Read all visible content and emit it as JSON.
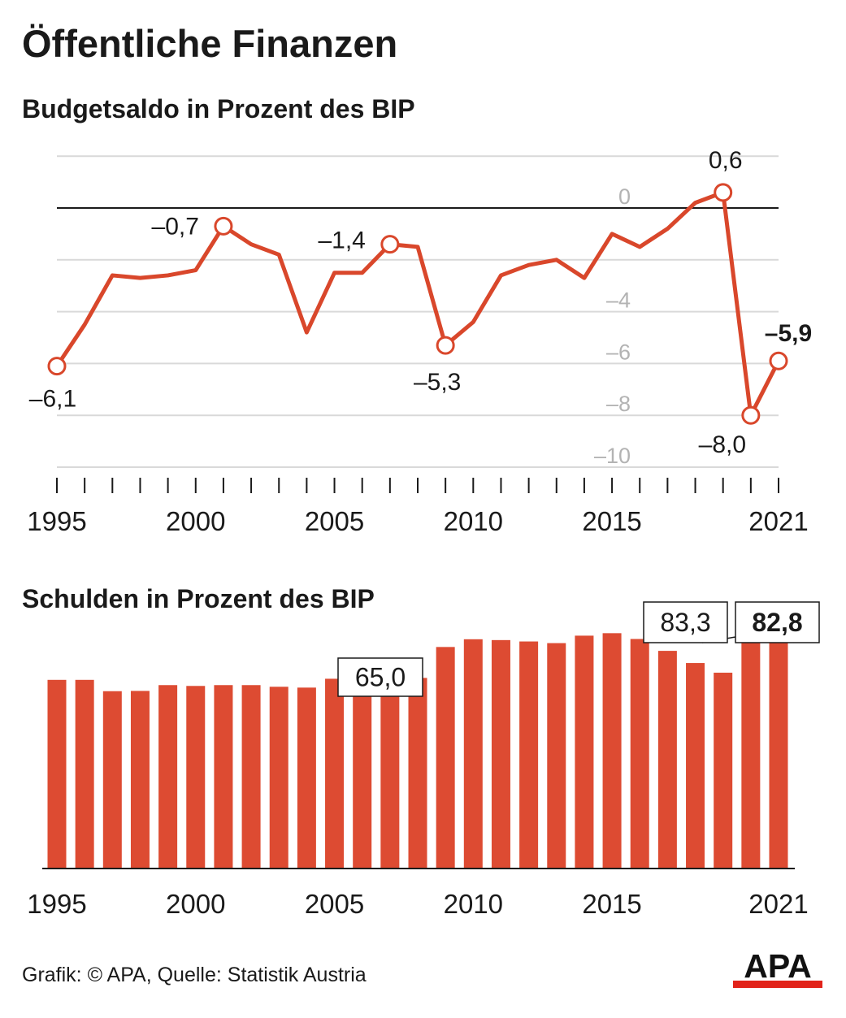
{
  "page": {
    "title": "Öffentliche Finanzen",
    "source": "Grafik: © APA, Quelle: Statistik Austria",
    "logo_text": "APA"
  },
  "colors": {
    "accent": "#d9472b",
    "bar": "#dd4b32",
    "grid": "#d9d9d9",
    "text": "#1a1a1a",
    "tick_label_gray": "#b3b3b3",
    "logo_red": "#e2231a"
  },
  "chart_data": [
    {
      "type": "line",
      "title": "Budgetsaldo in Prozent des BIP",
      "xlabel": "",
      "ylabel": "",
      "x": [
        1995,
        1996,
        1997,
        1998,
        1999,
        2000,
        2001,
        2002,
        2003,
        2004,
        2005,
        2006,
        2007,
        2008,
        2009,
        2010,
        2011,
        2012,
        2013,
        2014,
        2015,
        2016,
        2017,
        2018,
        2019,
        2020,
        2021
      ],
      "values": [
        -6.1,
        -4.5,
        -2.6,
        -2.7,
        -2.6,
        -2.4,
        -0.7,
        -1.4,
        -1.8,
        -4.8,
        -2.5,
        -2.5,
        -1.4,
        -1.5,
        -5.3,
        -4.4,
        -2.6,
        -2.2,
        -2.0,
        -2.7,
        -1.0,
        -1.5,
        -0.8,
        0.2,
        0.6,
        -8.0,
        -5.9
      ],
      "xlim": [
        1995,
        2021
      ],
      "ylim": [
        -10,
        2
      ],
      "y_ticks": [
        0,
        -4,
        -6,
        -8,
        -10
      ],
      "y_tick_labels": [
        "0",
        "–4",
        "–6",
        "–8",
        "–10"
      ],
      "x_tick_labels": [
        "1995",
        "2000",
        "2005",
        "2010",
        "2015",
        "2021"
      ],
      "zero_line": true,
      "grid": true,
      "highlighted_points": [
        {
          "x": 1995,
          "label": "–6,1",
          "bold": false
        },
        {
          "x": 2001,
          "label": "–0,7",
          "bold": false
        },
        {
          "x": 2007,
          "label": "–1,4",
          "bold": false
        },
        {
          "x": 2009,
          "label": "–5,3",
          "bold": false
        },
        {
          "x": 2019,
          "label": "0,6",
          "bold": false
        },
        {
          "x": 2020,
          "label": "–8,0",
          "bold": false
        },
        {
          "x": 2021,
          "label": "–5,9",
          "bold": true
        }
      ]
    },
    {
      "type": "bar",
      "title": "Schulden in Prozent des BIP",
      "xlabel": "",
      "ylabel": "",
      "x": [
        1995,
        1996,
        1997,
        1998,
        1999,
        2000,
        2001,
        2002,
        2003,
        2004,
        2005,
        2006,
        2007,
        2008,
        2009,
        2010,
        2011,
        2012,
        2013,
        2014,
        2015,
        2016,
        2017,
        2018,
        2019,
        2020,
        2021
      ],
      "values": [
        68.0,
        68.0,
        63.9,
        64.0,
        66.1,
        65.8,
        66.1,
        66.1,
        65.5,
        65.2,
        68.4,
        67.3,
        65.0,
        68.7,
        79.9,
        82.7,
        82.4,
        81.9,
        81.3,
        84.0,
        84.9,
        82.8,
        78.5,
        74.1,
        70.6,
        83.3,
        82.8
      ],
      "ylim": [
        0,
        90
      ],
      "x_tick_labels": [
        "1995",
        "2000",
        "2005",
        "2010",
        "2015",
        "2021"
      ],
      "callouts": [
        {
          "x": 2007,
          "label": "65,0",
          "bold": false
        },
        {
          "x": 2020,
          "label": "83,3",
          "bold": false
        },
        {
          "x": 2021,
          "label": "82,8",
          "bold": true
        }
      ]
    }
  ]
}
